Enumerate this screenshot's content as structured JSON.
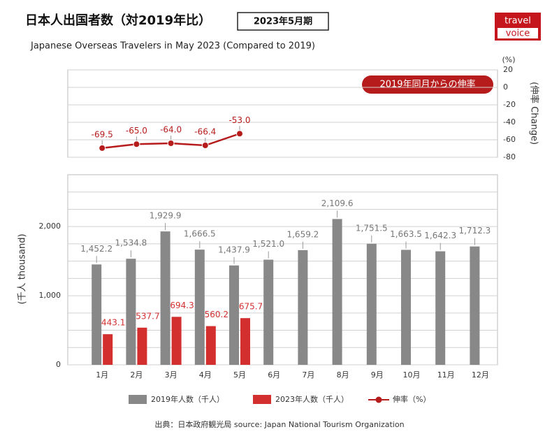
{
  "title": "日本人出国者数（対2019年比）",
  "period": "2023年5月期",
  "subtitle": "Japanese Overseas Travelers in May 2023 (Compared to 2019)",
  "logo": [
    "travel",
    "voice"
  ],
  "source": "出典：日本政府観光局  source: Japan National Tourism Organization",
  "chart_data": [
    {
      "type": "line",
      "unit_label": "(%)",
      "y_label": "(伸率 Change)",
      "annotation": "2019年同月からの伸率",
      "categories": [
        "1月",
        "2月",
        "3月",
        "4月",
        "5月",
        "6月",
        "7月",
        "8月",
        "9月",
        "10月",
        "11月",
        "12月"
      ],
      "series": [
        {
          "name": "伸率（%）",
          "color": "#b71c1c",
          "values": [
            -69.5,
            -65.0,
            -64.0,
            -66.4,
            -53.0,
            null,
            null,
            null,
            null,
            null,
            null,
            null
          ],
          "value_labels": [
            "-69.5",
            "-65.0",
            "-64.0",
            "-66.4",
            "-53.0",
            null,
            null,
            null,
            null,
            null,
            null,
            null
          ]
        }
      ],
      "ylim": [
        -80,
        20
      ],
      "yticks": [
        20,
        0,
        -20,
        -40,
        -60,
        -80
      ],
      "grid": true
    },
    {
      "type": "bar",
      "y_label": "(千人 thousand)",
      "categories": [
        "1月",
        "2月",
        "3月",
        "4月",
        "5月",
        "6月",
        "7月",
        "8月",
        "9月",
        "10月",
        "11月",
        "12月"
      ],
      "series": [
        {
          "name": "2019年人数（千人）",
          "color": "#888888",
          "values": [
            1452.2,
            1534.8,
            1929.9,
            1666.5,
            1437.9,
            1521.0,
            1659.2,
            2109.6,
            1751.5,
            1663.5,
            1642.3,
            1712.3
          ],
          "value_labels": [
            "1,452.2",
            "1,534.8",
            "1,929.9",
            "1,666.5",
            "1,437.9",
            "1,521.0",
            "1,659.2",
            "2,109.6",
            "1,751.5",
            "1,663.5",
            "1,642.3",
            "1,712.3"
          ]
        },
        {
          "name": "2023年人数（千人）",
          "color": "#d32f2f",
          "values": [
            443.1,
            537.7,
            694.3,
            560.2,
            675.7,
            null,
            null,
            null,
            null,
            null,
            null,
            null
          ]
        }
      ],
      "ylim": [
        0,
        2750
      ],
      "yticks": [
        0,
        {
          "value": 1000,
          "label": "1,000"
        },
        {
          "value": 2000,
          "label": "2,000"
        }
      ],
      "minor_grid": [
        250,
        500,
        750,
        1250,
        1500,
        1750,
        2250,
        2500
      ],
      "grid": true
    }
  ]
}
